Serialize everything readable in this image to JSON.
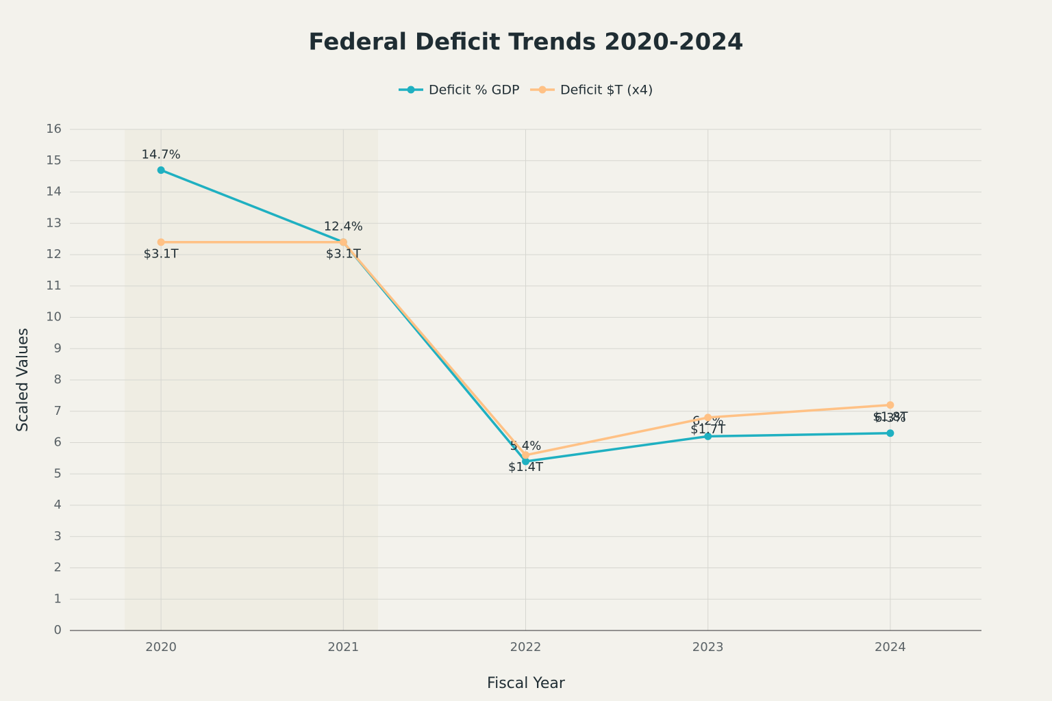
{
  "chart_data": {
    "type": "line",
    "title": "Federal Deficit Trends 2020-2024",
    "x_label": "Fiscal Year",
    "y_label": "Scaled Values",
    "x": [
      2020,
      2021,
      2022,
      2023,
      2024
    ],
    "series": [
      {
        "name": "Deficit % GDP",
        "color": "#1fb0c1",
        "values": [
          14.7,
          12.4,
          5.4,
          6.2,
          6.3
        ],
        "value_labels": [
          "14.7%",
          "12.4%",
          "5.4%",
          "6.2%",
          "6.3%"
        ]
      },
      {
        "name": "Deficit $T (x4)",
        "color": "#ffc185",
        "values": [
          12.4,
          12.4,
          5.6,
          6.8,
          7.2
        ],
        "value_labels": [
          "$3.1T",
          "$3.1T",
          "$1.4T",
          "$1.7T",
          "$1.8T"
        ]
      }
    ],
    "xlim": [
      2019.5,
      2024.5
    ],
    "xticks": [
      2020,
      2021,
      2022,
      2023,
      2024
    ],
    "ylim": [
      0,
      16
    ],
    "yticks": [
      0,
      1,
      2,
      3,
      4,
      5,
      6,
      7,
      8,
      9,
      10,
      11,
      12,
      13,
      14,
      15,
      16
    ],
    "grid": true,
    "legend": "top"
  }
}
